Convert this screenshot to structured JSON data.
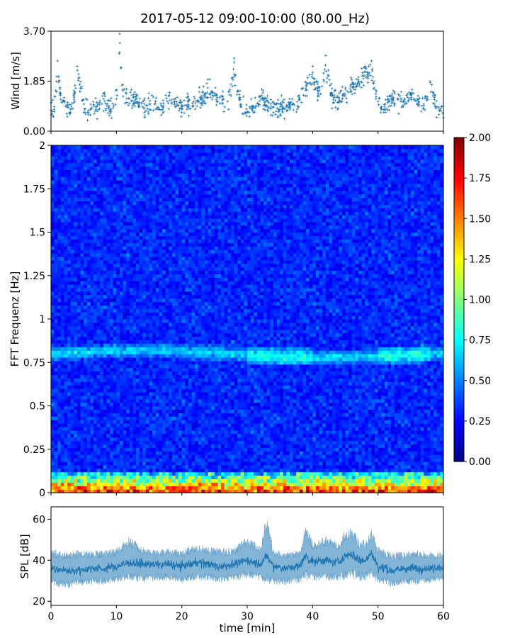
{
  "title": "2017-05-12 09:00-10:00 (80.00_Hz)",
  "colors": {
    "series": "#1f77b4",
    "colormap": "jet",
    "axes": "#000000",
    "background": "#ffffff"
  },
  "chart_data": [
    {
      "type": "scatter",
      "panel": "wind",
      "xlabel": "",
      "ylabel": "Wind [m/s]",
      "xlim": [
        0,
        60
      ],
      "ylim": [
        0.0,
        3.7
      ],
      "yticks": [
        "0.00",
        "1.85",
        "3.70"
      ],
      "marker": "+",
      "x": [
        0.5,
        1.0,
        1.5,
        2.0,
        2.5,
        3.0,
        3.5,
        4.0,
        5.0,
        6.0,
        7.0,
        8.0,
        9.0,
        10.0,
        10.5,
        11.0,
        12.0,
        13.0,
        14.0,
        15.0,
        16.0,
        17.0,
        18.0,
        19.0,
        20.0,
        21.0,
        22.0,
        23.0,
        24.0,
        25.0,
        26.0,
        27.0,
        28.0,
        29.0,
        30.0,
        31.0,
        32.0,
        33.0,
        34.0,
        35.0,
        36.0,
        37.0,
        38.0,
        39.0,
        40.0,
        41.0,
        42.0,
        43.0,
        44.0,
        45.0,
        46.0,
        47.0,
        48.0,
        49.0,
        50.0,
        51.0,
        52.0,
        53.0,
        54.0,
        55.0,
        56.0,
        57.0,
        58.0,
        59.0,
        60.0
      ],
      "y": [
        0.9,
        2.6,
        1.4,
        1.1,
        0.9,
        0.7,
        1.3,
        2.4,
        1.0,
        0.8,
        0.9,
        1.4,
        0.8,
        1.2,
        3.6,
        1.5,
        1.2,
        1.3,
        0.9,
        1.0,
        1.1,
        0.9,
        1.3,
        1.2,
        0.9,
        1.1,
        1.2,
        1.3,
        1.6,
        1.4,
        1.3,
        1.1,
        2.7,
        1.0,
        0.7,
        0.9,
        1.3,
        1.2,
        0.9,
        0.8,
        0.9,
        1.0,
        1.2,
        1.8,
        2.4,
        1.6,
        2.8,
        1.4,
        1.2,
        1.6,
        1.9,
        2.0,
        2.4,
        2.6,
        1.1,
        0.9,
        1.3,
        1.2,
        1.1,
        1.4,
        1.2,
        1.0,
        1.8,
        0.9,
        0.5
      ]
    },
    {
      "type": "heatmap",
      "panel": "spectrogram",
      "xlabel": "",
      "ylabel": "FFT Frequenz [Hz]",
      "xlim": [
        0,
        60
      ],
      "ylim": [
        0,
        2
      ],
      "yticks": [
        "0",
        "0.25",
        "0.5",
        "0.75",
        "1",
        "1.25",
        "1.5",
        "1.75",
        "2"
      ],
      "colorbar": {
        "range": [
          0.0,
          2.0
        ],
        "ticks": [
          "0.00",
          "0.25",
          "0.50",
          "0.75",
          "1.00",
          "1.25",
          "1.50",
          "1.75",
          "2.00"
        ]
      },
      "features": {
        "microseism_band_hz": 0.8,
        "low_freq_band_hz": [
          0,
          0.12
        ],
        "typical_level": 0.3
      }
    },
    {
      "type": "area",
      "panel": "spl",
      "xlabel": "time [min]",
      "ylabel": "SPL [dB]",
      "xlim": [
        0,
        60
      ],
      "ylim": [
        18,
        66
      ],
      "yticks": [
        "20",
        "40",
        "60"
      ],
      "xticks": [
        "0",
        "10",
        "20",
        "30",
        "40",
        "50",
        "60"
      ],
      "x": [
        0,
        2,
        4,
        6,
        8,
        10,
        12,
        14,
        16,
        18,
        20,
        22,
        24,
        26,
        28,
        30,
        32,
        33,
        34,
        36,
        38,
        39,
        40,
        42,
        44,
        45,
        46,
        47,
        48,
        49,
        50,
        52,
        54,
        56,
        58,
        60
      ],
      "upper": [
        46,
        44,
        45,
        45,
        45,
        46,
        52,
        46,
        45,
        46,
        45,
        48,
        47,
        46,
        46,
        52,
        47,
        64,
        46,
        44,
        45,
        59,
        49,
        52,
        49,
        55,
        56,
        51,
        50,
        56,
        47,
        44,
        44,
        45,
        44,
        44
      ],
      "lower": [
        28,
        26,
        27,
        28,
        28,
        29,
        30,
        29,
        30,
        30,
        29,
        30,
        30,
        29,
        30,
        31,
        30,
        28,
        28,
        28,
        29,
        30,
        30,
        30,
        30,
        30,
        31,
        30,
        30,
        31,
        29,
        27,
        28,
        28,
        29,
        30
      ],
      "median": [
        36,
        35,
        35,
        36,
        36,
        37,
        39,
        38,
        38,
        38,
        37,
        39,
        38,
        37,
        38,
        40,
        38,
        42,
        37,
        36,
        37,
        42,
        39,
        40,
        39,
        42,
        43,
        40,
        40,
        43,
        37,
        35,
        36,
        36,
        36,
        37
      ]
    }
  ]
}
